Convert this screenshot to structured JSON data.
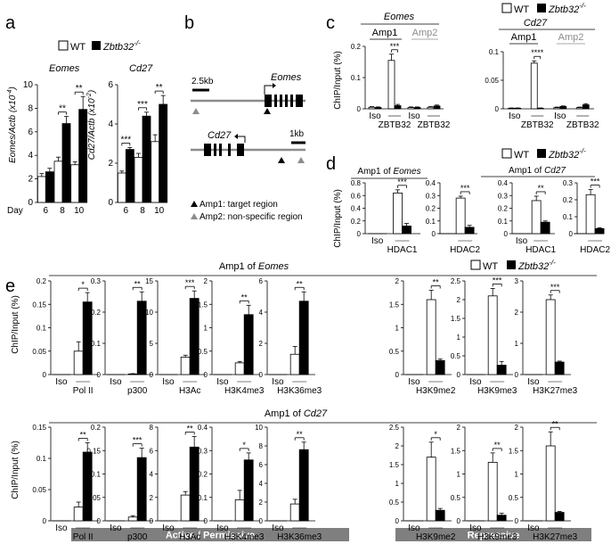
{
  "panel_letters": {
    "a": "a",
    "b": "b",
    "c": "c",
    "d": "d",
    "e": "e"
  },
  "legend": {
    "wt": "WT",
    "ko": "Zbtb32",
    "ko_sup": "-/-"
  },
  "colors": {
    "wt": "#ffffff",
    "ko": "#000000",
    "gray": "#8c8c8c",
    "banner": "#7f7f7f"
  },
  "panel_a": {
    "title_eomes": "Eomes",
    "title_cd27": "Cd27",
    "ylabel_eomes": "Eomes/Actb (x10",
    "ylabel_eomes_sup": "-4",
    "ylabel_cd27": "Cd27/Actb (x10",
    "ylabel_cd27_sup": "-2",
    "day_label": "Day"
  },
  "panel_b": {
    "scale_top": "2.5kb",
    "scale_bottom": "1kb",
    "gene_eomes": "Eomes",
    "gene_cd27": "Cd27",
    "legend_amp1": "Amp1: target region",
    "legend_amp2": "Amp2: non-specific region"
  },
  "panel_c": {
    "ylabel": "ChIP/Input (%)",
    "title_eomes": "Eomes",
    "title_cd27": "Cd27",
    "amp1": "Amp1",
    "amp2": "Amp2",
    "iso": "Iso",
    "antibody": "ZBTB32"
  },
  "panel_d": {
    "ylabel": "ChIP/Input (%)",
    "title_eomes": "Amp1 of ",
    "title_eomes_gene": "Eomes",
    "title_cd27": "Amp1 of ",
    "title_cd27_gene": "Cd27",
    "iso": "Iso"
  },
  "panel_e": {
    "ylabel": "ChIP/Input (%)",
    "title_eomes": "Amp1 of ",
    "title_eomes_gene": "Eomes",
    "title_cd27": "Amp1 of ",
    "title_cd27_gene": "Cd27",
    "iso": "Iso",
    "banner_active": "Active / Permissive",
    "banner_repressive": "Repressive"
  },
  "chart_data": [
    {
      "id": "a-eomes",
      "type": "bar",
      "title": "Eomes",
      "ylabel": "Eomes/Actb (x10-4)",
      "xlabel": "Day",
      "categories": [
        "6",
        "8",
        "10"
      ],
      "ylim": [
        0,
        10
      ],
      "yticks": [
        0,
        2,
        4,
        6,
        8,
        10
      ],
      "series": [
        {
          "name": "WT",
          "values": [
            2.2,
            3.5,
            3.2
          ],
          "errors": [
            0.25,
            0.35,
            0.25
          ]
        },
        {
          "name": "Zbtb32-/-",
          "values": [
            2.6,
            6.7,
            7.9
          ],
          "errors": [
            0.3,
            0.6,
            1.1
          ]
        }
      ],
      "significance": [
        "",
        "**",
        "**"
      ]
    },
    {
      "id": "a-cd27",
      "type": "bar",
      "title": "Cd27",
      "ylabel": "Cd27/Actb (x10-2)",
      "xlabel": "Day",
      "categories": [
        "6",
        "8",
        "10"
      ],
      "ylim": [
        0,
        6
      ],
      "yticks": [
        0,
        2,
        4,
        6
      ],
      "series": [
        {
          "name": "WT",
          "values": [
            1.5,
            2.3,
            3.1
          ],
          "errors": [
            0.1,
            0.2,
            0.35
          ]
        },
        {
          "name": "Zbtb32-/-",
          "values": [
            2.7,
            4.4,
            5.0
          ],
          "errors": [
            0.1,
            0.2,
            0.45
          ]
        }
      ],
      "significance": [
        "***",
        "***",
        "**"
      ]
    },
    {
      "id": "c-eomes",
      "type": "bar",
      "title": "Eomes",
      "ylabel": "ChIP/Input (%)",
      "categories": [
        "Iso",
        "ZBTB32",
        "Iso",
        "ZBTB32"
      ],
      "groups": [
        "Amp1",
        "Amp2"
      ],
      "ylim": [
        0,
        0.2
      ],
      "yticks": [
        0,
        0.1,
        0.2
      ],
      "series": [
        {
          "name": "WT",
          "values": [
            0.005,
            0.155,
            0.004,
            0.005
          ],
          "errors": [
            0.002,
            0.02,
            0.002,
            0.002
          ]
        },
        {
          "name": "Zbtb32-/-",
          "values": [
            0.004,
            0.01,
            0.004,
            0.009
          ],
          "errors": [
            0.002,
            0.004,
            0.002,
            0.003
          ]
        }
      ],
      "significance": [
        "",
        "***",
        "",
        ""
      ]
    },
    {
      "id": "c-cd27",
      "type": "bar",
      "title": "Cd27",
      "ylabel": "",
      "categories": [
        "Iso",
        "ZBTB32",
        "Iso",
        "ZBTB32"
      ],
      "groups": [
        "Amp1",
        "Amp2"
      ],
      "ylim": [
        0,
        0.1
      ],
      "yticks": [
        0,
        0.05,
        0.1
      ],
      "series": [
        {
          "name": "WT",
          "values": [
            0.001,
            0.08,
            0.002,
            0.002
          ],
          "errors": [
            0.0005,
            0.004,
            0.001,
            0.001
          ]
        },
        {
          "name": "Zbtb32-/-",
          "values": [
            0.001,
            0.001,
            0.004,
            0.007
          ],
          "errors": [
            0.0005,
            0.0005,
            0.001,
            0.002
          ]
        }
      ],
      "significance": [
        "",
        "****",
        "",
        ""
      ]
    },
    {
      "id": "d-eomes-hdac1",
      "type": "bar",
      "title": "Amp1 of Eomes",
      "categories": [
        "Iso",
        "HDAC1"
      ],
      "ylim": [
        0,
        0.8
      ],
      "yticks": [
        0,
        0.2,
        0.4,
        0.6,
        0.8
      ],
      "series": [
        {
          "name": "WT",
          "values": [
            0,
            0.64
          ],
          "errors": [
            0,
            0.05
          ]
        },
        {
          "name": "Zbtb32-/-",
          "values": [
            0,
            0.12
          ],
          "errors": [
            0,
            0.04
          ]
        }
      ],
      "significance": [
        "",
        "***"
      ]
    },
    {
      "id": "d-eomes-hdac2",
      "type": "bar",
      "title": "Amp1 of Eomes",
      "categories": [
        "Iso",
        "HDAC2"
      ],
      "ylim": [
        0,
        0.4
      ],
      "yticks": [
        0,
        0.1,
        0.2,
        0.3,
        0.4
      ],
      "series": [
        {
          "name": "WT",
          "values": [
            0,
            0.28
          ],
          "errors": [
            0,
            0.015
          ]
        },
        {
          "name": "Zbtb32-/-",
          "values": [
            0,
            0.05
          ],
          "errors": [
            0,
            0.015
          ]
        }
      ],
      "significance": [
        "",
        "***"
      ]
    },
    {
      "id": "d-cd27-hdac1",
      "type": "bar",
      "title": "Amp1 of Cd27",
      "categories": [
        "Iso",
        "HDAC1"
      ],
      "ylim": [
        0,
        0.4
      ],
      "yticks": [
        0,
        0.1,
        0.2,
        0.3,
        0.4
      ],
      "series": [
        {
          "name": "WT",
          "values": [
            0,
            0.26
          ],
          "errors": [
            0,
            0.035
          ]
        },
        {
          "name": "Zbtb32-/-",
          "values": [
            0,
            0.09
          ],
          "errors": [
            0,
            0.01
          ]
        }
      ],
      "significance": [
        "",
        "**"
      ]
    },
    {
      "id": "d-cd27-hdac2",
      "type": "bar",
      "title": "Amp1 of Cd27",
      "categories": [
        "Iso",
        "HDAC2"
      ],
      "ylim": [
        0,
        0.3
      ],
      "yticks": [
        0,
        0.1,
        0.2,
        0.3
      ],
      "series": [
        {
          "name": "WT",
          "values": [
            0,
            0.23
          ],
          "errors": [
            0,
            0.03
          ]
        },
        {
          "name": "Zbtb32-/-",
          "values": [
            0,
            0.03
          ],
          "errors": [
            0,
            0.005
          ]
        }
      ],
      "significance": [
        "",
        "***"
      ]
    },
    {
      "id": "e-eomes-polii",
      "type": "bar",
      "title": "Amp1 of Eomes",
      "categories": [
        "Iso",
        "Pol II"
      ],
      "ylim": [
        0,
        0.2
      ],
      "yticks": [
        0,
        0.05,
        0.1,
        0.15,
        0.2
      ],
      "series": [
        {
          "name": "WT",
          "values": [
            0,
            0.05
          ],
          "errors": [
            0,
            0.02
          ]
        },
        {
          "name": "Zbtb32-/-",
          "values": [
            0,
            0.155
          ],
          "errors": [
            0,
            0.02
          ]
        }
      ],
      "significance": [
        "",
        "*"
      ]
    },
    {
      "id": "e-eomes-p300",
      "type": "bar",
      "title": "Amp1 of Eomes",
      "categories": [
        "Iso",
        "p300"
      ],
      "ylim": [
        0,
        0.3
      ],
      "yticks": [
        0,
        0.1,
        0.2,
        0.3
      ],
      "series": [
        {
          "name": "WT",
          "values": [
            0,
            0.002
          ],
          "errors": [
            0,
            0.001
          ]
        },
        {
          "name": "Zbtb32-/-",
          "values": [
            0,
            0.235
          ],
          "errors": [
            0,
            0.03
          ]
        }
      ],
      "significance": [
        "",
        "**"
      ]
    },
    {
      "id": "e-eomes-h3ac",
      "type": "bar",
      "title": "Amp1 of Eomes",
      "categories": [
        "Iso",
        "H3Ac"
      ],
      "ylim": [
        0,
        15
      ],
      "yticks": [
        0,
        5,
        10,
        15
      ],
      "series": [
        {
          "name": "WT",
          "values": [
            0,
            2.8
          ],
          "errors": [
            0,
            0.3
          ]
        },
        {
          "name": "Zbtb32-/-",
          "values": [
            0,
            12.2
          ],
          "errors": [
            0,
            1.2
          ]
        }
      ],
      "significance": [
        "",
        "***"
      ]
    },
    {
      "id": "e-eomes-h3k4me3",
      "type": "bar",
      "title": "Amp1 of Eomes",
      "categories": [
        "Iso",
        "H3K4me3"
      ],
      "ylim": [
        0,
        2
      ],
      "yticks": [
        0,
        0.5,
        1,
        1.5,
        2
      ],
      "series": [
        {
          "name": "WT",
          "values": [
            0,
            0.25
          ],
          "errors": [
            0,
            0.03
          ]
        },
        {
          "name": "Zbtb32-/-",
          "values": [
            0,
            1.28
          ],
          "errors": [
            0,
            0.2
          ]
        }
      ],
      "significance": [
        "",
        "**"
      ]
    },
    {
      "id": "e-eomes-h3k36me3",
      "type": "bar",
      "title": "Amp1 of Eomes",
      "categories": [
        "Iso",
        "H3K36me3"
      ],
      "ylim": [
        0,
        6
      ],
      "yticks": [
        0,
        2,
        4,
        6
      ],
      "series": [
        {
          "name": "WT",
          "values": [
            0,
            1.3
          ],
          "errors": [
            0,
            0.5
          ]
        },
        {
          "name": "Zbtb32-/-",
          "values": [
            0,
            4.7
          ],
          "errors": [
            0,
            0.6
          ]
        }
      ],
      "significance": [
        "",
        "**"
      ]
    },
    {
      "id": "e-eomes-h3k9me2",
      "type": "bar",
      "title": "Amp1 of Eomes",
      "categories": [
        "Iso",
        "H3K9me2"
      ],
      "ylim": [
        0,
        2
      ],
      "yticks": [
        0,
        0.5,
        1,
        1.5,
        2
      ],
      "series": [
        {
          "name": "WT",
          "values": [
            0,
            1.6
          ],
          "errors": [
            0,
            0.2
          ]
        },
        {
          "name": "Zbtb32-/-",
          "values": [
            0,
            0.3
          ],
          "errors": [
            0,
            0.03
          ]
        }
      ],
      "significance": [
        "",
        "**"
      ]
    },
    {
      "id": "e-eomes-h3k9me3",
      "type": "bar",
      "title": "Amp1 of Eomes",
      "categories": [
        "Iso",
        "H3K9me3"
      ],
      "ylim": [
        0,
        2.5
      ],
      "yticks": [
        0,
        0.5,
        1,
        1.5,
        2,
        2.5
      ],
      "series": [
        {
          "name": "WT",
          "values": [
            0,
            2.1
          ],
          "errors": [
            0,
            0.2
          ]
        },
        {
          "name": "Zbtb32-/-",
          "values": [
            0,
            0.25
          ],
          "errors": [
            0,
            0.1
          ]
        }
      ],
      "significance": [
        "",
        "***"
      ]
    },
    {
      "id": "e-eomes-h3k27me3",
      "type": "bar",
      "title": "Amp1 of Eomes",
      "categories": [
        "Iso",
        "H3K27me3"
      ],
      "ylim": [
        0,
        3
      ],
      "yticks": [
        0,
        1,
        2,
        3
      ],
      "series": [
        {
          "name": "WT",
          "values": [
            0,
            2.4
          ],
          "errors": [
            0,
            0.15
          ]
        },
        {
          "name": "Zbtb32-/-",
          "values": [
            0,
            0.4
          ],
          "errors": [
            0,
            0.03
          ]
        }
      ],
      "significance": [
        "",
        "***"
      ]
    },
    {
      "id": "e-cd27-polii",
      "type": "bar",
      "title": "Amp1 of Cd27",
      "categories": [
        "Iso",
        "Pol II"
      ],
      "ylim": [
        0,
        0.15
      ],
      "yticks": [
        0,
        0.05,
        0.1,
        0.15
      ],
      "series": [
        {
          "name": "WT",
          "values": [
            0,
            0.022
          ],
          "errors": [
            0,
            0.008
          ]
        },
        {
          "name": "Zbtb32-/-",
          "values": [
            0,
            0.11
          ],
          "errors": [
            0,
            0.015
          ]
        }
      ],
      "significance": [
        "",
        "**"
      ]
    },
    {
      "id": "e-cd27-p300",
      "type": "bar",
      "title": "Amp1 of Cd27",
      "categories": [
        "Iso",
        "p300"
      ],
      "ylim": [
        0,
        0.2
      ],
      "yticks": [
        0,
        0.05,
        0.1,
        0.15,
        0.2
      ],
      "series": [
        {
          "name": "WT",
          "values": [
            0,
            0.008
          ],
          "errors": [
            0,
            0.003
          ]
        },
        {
          "name": "Zbtb32-/-",
          "values": [
            0,
            0.135
          ],
          "errors": [
            0,
            0.02
          ]
        }
      ],
      "significance": [
        "",
        "***"
      ]
    },
    {
      "id": "e-cd27-h3ac",
      "type": "bar",
      "title": "Amp1 of Cd27",
      "categories": [
        "Iso",
        "H3Ac"
      ],
      "ylim": [
        0,
        8
      ],
      "yticks": [
        0,
        2,
        4,
        6,
        8
      ],
      "series": [
        {
          "name": "WT",
          "values": [
            0,
            2.2
          ],
          "errors": [
            0,
            0.3
          ]
        },
        {
          "name": "Zbtb32-/-",
          "values": [
            0,
            6.3
          ],
          "errors": [
            0,
            0.9
          ]
        }
      ],
      "significance": [
        "",
        "**"
      ]
    },
    {
      "id": "e-cd27-h3k4me3",
      "type": "bar",
      "title": "Amp1 of Cd27",
      "categories": [
        "Iso",
        "H3K4me3"
      ],
      "ylim": [
        0,
        0.4
      ],
      "yticks": [
        0,
        0.1,
        0.2,
        0.3,
        0.4
      ],
      "series": [
        {
          "name": "WT",
          "values": [
            0,
            0.09
          ],
          "errors": [
            0,
            0.04
          ]
        },
        {
          "name": "Zbtb32-/-",
          "values": [
            0,
            0.26
          ],
          "errors": [
            0,
            0.03
          ]
        }
      ],
      "significance": [
        "",
        "*"
      ]
    },
    {
      "id": "e-cd27-h3k36me3",
      "type": "bar",
      "title": "Amp1 of Cd27",
      "categories": [
        "Iso",
        "H3K36me3"
      ],
      "ylim": [
        0,
        10
      ],
      "yticks": [
        0,
        2,
        4,
        6,
        8,
        10
      ],
      "series": [
        {
          "name": "WT",
          "values": [
            0,
            1.8
          ],
          "errors": [
            0,
            0.5
          ]
        },
        {
          "name": "Zbtb32-/-",
          "values": [
            0,
            7.6
          ],
          "errors": [
            0,
            0.8
          ]
        }
      ],
      "significance": [
        "",
        "**"
      ]
    },
    {
      "id": "e-cd27-h3k9me2",
      "type": "bar",
      "title": "Amp1 of Cd27",
      "categories": [
        "Iso",
        "H3K9me2"
      ],
      "ylim": [
        0,
        2.5
      ],
      "yticks": [
        0,
        0.5,
        1,
        1.5,
        2,
        2.5
      ],
      "series": [
        {
          "name": "WT",
          "values": [
            0,
            1.7
          ],
          "errors": [
            0,
            0.4
          ]
        },
        {
          "name": "Zbtb32-/-",
          "values": [
            0,
            0.28
          ],
          "errors": [
            0,
            0.05
          ]
        }
      ],
      "significance": [
        "",
        "*"
      ]
    },
    {
      "id": "e-cd27-h3k9me3",
      "type": "bar",
      "title": "Amp1 of Cd27",
      "categories": [
        "Iso",
        "H3K9me3"
      ],
      "ylim": [
        0,
        2
      ],
      "yticks": [
        0,
        0.5,
        1,
        1.5,
        2
      ],
      "series": [
        {
          "name": "WT",
          "values": [
            0,
            1.25
          ],
          "errors": [
            0,
            0.2
          ]
        },
        {
          "name": "Zbtb32-/-",
          "values": [
            0,
            0.12
          ],
          "errors": [
            0,
            0.04
          ]
        }
      ],
      "significance": [
        "",
        "**"
      ]
    },
    {
      "id": "e-cd27-h3k27me3",
      "type": "bar",
      "title": "Amp1 of Cd27",
      "categories": [
        "Iso",
        "H3K27me3"
      ],
      "ylim": [
        0,
        2
      ],
      "yticks": [
        0,
        0.5,
        1,
        1.5,
        2
      ],
      "series": [
        {
          "name": "WT",
          "values": [
            0,
            1.6
          ],
          "errors": [
            0,
            0.3
          ]
        },
        {
          "name": "Zbtb32-/-",
          "values": [
            0,
            0.18
          ],
          "errors": [
            0,
            0.02
          ]
        }
      ],
      "significance": [
        "",
        "**"
      ]
    }
  ]
}
